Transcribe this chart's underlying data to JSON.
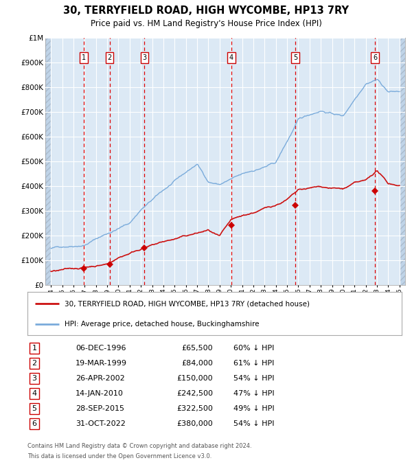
{
  "title": "30, TERRYFIELD ROAD, HIGH WYCOMBE, HP13 7RY",
  "subtitle": "Price paid vs. HM Land Registry's House Price Index (HPI)",
  "bg_color": "#dce9f5",
  "grid_color": "#ffffff",
  "hpi_color": "#7aabdb",
  "price_color": "#cc1111",
  "sale_marker_color": "#cc0000",
  "dashed_line_color": "#dd0000",
  "ylabel_values": [
    "£0",
    "£100K",
    "£200K",
    "£300K",
    "£400K",
    "£500K",
    "£600K",
    "£700K",
    "£800K",
    "£900K",
    "£1M"
  ],
  "ytick_values": [
    0,
    100000,
    200000,
    300000,
    400000,
    500000,
    600000,
    700000,
    800000,
    900000,
    1000000
  ],
  "xlim_start": 1993.5,
  "xlim_end": 2025.5,
  "ylim_min": 0,
  "ylim_max": 1000000,
  "sales": [
    {
      "num": 1,
      "date": "06-DEC-1996",
      "year": 1996.92,
      "price": 65500,
      "hpi_pct": "60% ↓ HPI"
    },
    {
      "num": 2,
      "date": "19-MAR-1999",
      "year": 1999.21,
      "price": 84000,
      "hpi_pct": "61% ↓ HPI"
    },
    {
      "num": 3,
      "date": "26-APR-2002",
      "year": 2002.32,
      "price": 150000,
      "hpi_pct": "54% ↓ HPI"
    },
    {
      "num": 4,
      "date": "14-JAN-2010",
      "year": 2010.04,
      "price": 242500,
      "hpi_pct": "47% ↓ HPI"
    },
    {
      "num": 5,
      "date": "28-SEP-2015",
      "year": 2015.74,
      "price": 322500,
      "hpi_pct": "49% ↓ HPI"
    },
    {
      "num": 6,
      "date": "31-OCT-2022",
      "year": 2022.83,
      "price": 380000,
      "hpi_pct": "54% ↓ HPI"
    }
  ],
  "legend_line1": "30, TERRYFIELD ROAD, HIGH WYCOMBE, HP13 7RY (detached house)",
  "legend_line2": "HPI: Average price, detached house, Buckinghamshire",
  "footer1": "Contains HM Land Registry data © Crown copyright and database right 2024.",
  "footer2": "This data is licensed under the Open Government Licence v3.0.",
  "xtick_years": [
    1994,
    1995,
    1996,
    1997,
    1998,
    1999,
    2000,
    2001,
    2002,
    2003,
    2004,
    2005,
    2006,
    2007,
    2008,
    2009,
    2010,
    2011,
    2012,
    2013,
    2014,
    2015,
    2016,
    2017,
    2018,
    2019,
    2020,
    2021,
    2022,
    2023,
    2024,
    2025
  ]
}
